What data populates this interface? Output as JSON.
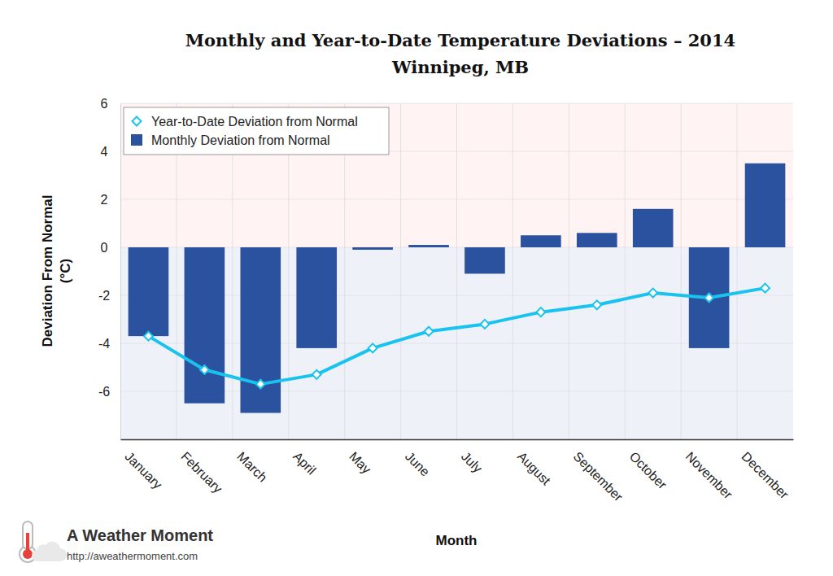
{
  "chart_data": {
    "type": "bar",
    "title": "Monthly and Year-to-Date Temperature Deviations – 2014",
    "subtitle": "Winnipeg, MB",
    "x_label": "Month",
    "y_label": "Deviation From Normal (°C)",
    "annotations": [
      "A Weather Moment",
      "http://aweathermoment.com"
    ],
    "categories": [
      "January",
      "February",
      "March",
      "April",
      "May",
      "June",
      "July",
      "August",
      "September",
      "October",
      "November",
      "December"
    ],
    "series": [
      {
        "name": "Year-to-Date Deviation from Normal",
        "type": "line",
        "color": "#19c3ef",
        "marker": "diamond",
        "values": [
          -3.7,
          -5.1,
          -5.7,
          -5.3,
          -4.2,
          -3.5,
          -3.2,
          -2.7,
          -2.4,
          -1.9,
          -2.1,
          -1.7
        ]
      },
      {
        "name": "Monthly Deviation from Normal",
        "type": "bar",
        "color": "#2b529e",
        "values": [
          -3.7,
          -6.5,
          -6.9,
          -4.2,
          -0.1,
          0.1,
          -1.1,
          0.5,
          0.6,
          1.6,
          -4.2,
          3.5
        ]
      }
    ],
    "ylim": [
      -8,
      6
    ],
    "yticks": [
      -6,
      -4,
      -2,
      0,
      2,
      4,
      6
    ],
    "grid": true,
    "legend": "upper left"
  }
}
